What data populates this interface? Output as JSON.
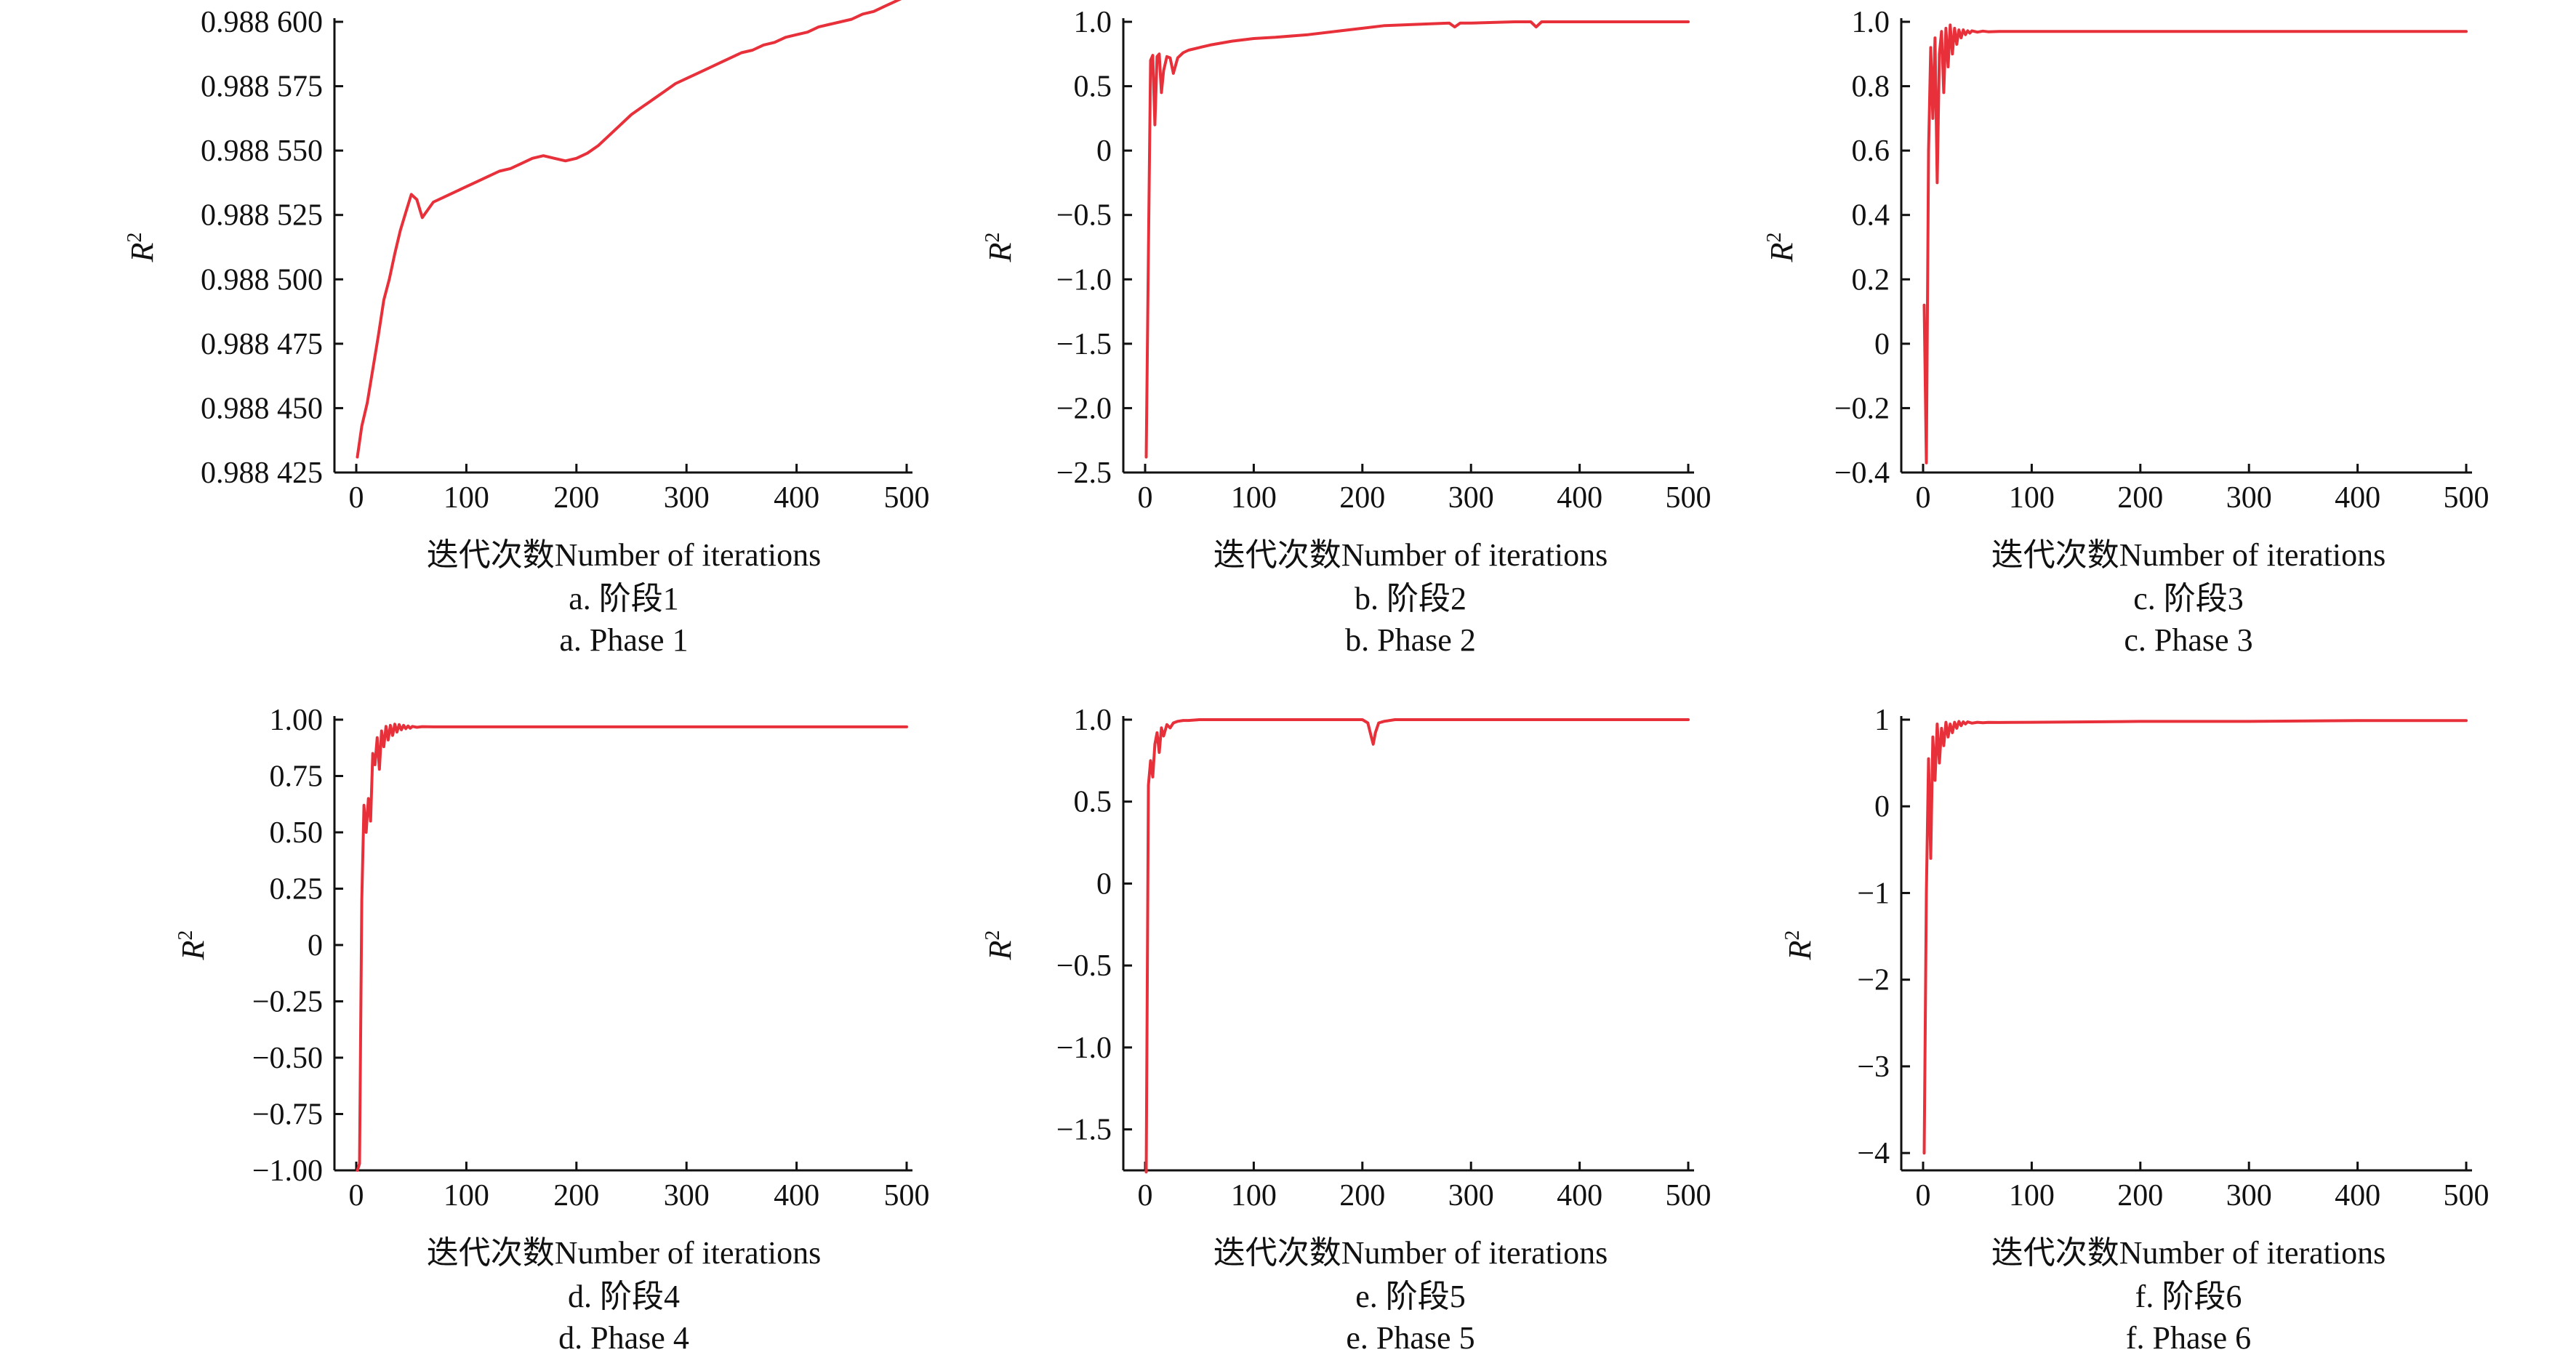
{
  "chart_data": [
    {
      "type": "line",
      "ylabel": "R",
      "ylabel_sup": "2",
      "xlabel": "迭代次数Number of iterations",
      "caption_cn": "a. 阶段1",
      "caption_en": "a. Phase 1",
      "xlim": [
        0,
        500
      ],
      "ylim": [
        0.988425,
        0.9886
      ],
      "xticks": [
        0,
        100,
        200,
        300,
        400,
        500
      ],
      "xtick_labels": [
        "0",
        "100",
        "200",
        "300",
        "400",
        "500"
      ],
      "yticks": [
        0.988425,
        0.98845,
        0.988475,
        0.9885,
        0.988525,
        0.98855,
        0.988575,
        0.9886
      ],
      "ytick_labels": [
        "0.988 425",
        "0.988 450",
        "0.988 475",
        "0.988 500",
        "0.988 525",
        "0.988 550",
        "0.988 575",
        "0.988 600"
      ],
      "grid": false,
      "color": "#e8303a",
      "series": [
        {
          "x": [
            1,
            5,
            10,
            15,
            20,
            25,
            30,
            35,
            40,
            45,
            50,
            55,
            60,
            65,
            70,
            80,
            90,
            100,
            110,
            120,
            130,
            140,
            150,
            160,
            170,
            180,
            190,
            200,
            210,
            220,
            230,
            240,
            250,
            260,
            270,
            280,
            290,
            300,
            310,
            320,
            330,
            340,
            350,
            360,
            370,
            380,
            390,
            400,
            410,
            420,
            430,
            440,
            450,
            460,
            470,
            480,
            490,
            500
          ],
          "y": [
            0.988431,
            0.988443,
            0.988452,
            0.988465,
            0.988478,
            0.988492,
            0.9885,
            0.98851,
            0.988519,
            0.988526,
            0.988533,
            0.988531,
            0.988524,
            0.988527,
            0.98853,
            0.988532,
            0.988534,
            0.988536,
            0.988538,
            0.98854,
            0.988542,
            0.988543,
            0.988545,
            0.988547,
            0.988548,
            0.988547,
            0.988546,
            0.988547,
            0.988549,
            0.988552,
            0.988556,
            0.98856,
            0.988564,
            0.988567,
            0.98857,
            0.988573,
            0.988576,
            0.988578,
            0.98858,
            0.988582,
            0.988584,
            0.988586,
            0.988588,
            0.988589,
            0.988591,
            0.988592,
            0.988594,
            0.988595,
            0.988596,
            0.988598,
            0.988599,
            0.9886,
            0.988601,
            0.988603,
            0.988604,
            0.988606,
            0.988608,
            0.98861
          ]
        }
      ]
    },
    {
      "type": "line",
      "ylabel": "R",
      "ylabel_sup": "2",
      "xlabel": "迭代次数Number of iterations",
      "caption_cn": "b. 阶段2",
      "caption_en": "b. Phase 2",
      "xlim": [
        0,
        500
      ],
      "ylim": [
        -2.5,
        1.0
      ],
      "xticks": [
        0,
        100,
        200,
        300,
        400,
        500
      ],
      "xtick_labels": [
        "0",
        "100",
        "200",
        "300",
        "400",
        "500"
      ],
      "yticks": [
        -2.5,
        -2.0,
        -1.5,
        -1.0,
        -0.5,
        0,
        0.5,
        1.0
      ],
      "ytick_labels": [
        "−2.5",
        "−2.0",
        "−1.5",
        "−1.0",
        "−0.5",
        "0",
        "0.5",
        "1.0"
      ],
      "grid": false,
      "color": "#e8303a",
      "series": [
        {
          "x": [
            1,
            3,
            5,
            7,
            9,
            11,
            13,
            15,
            17,
            20,
            23,
            26,
            30,
            35,
            40,
            50,
            60,
            80,
            100,
            120,
            150,
            180,
            200,
            220,
            250,
            280,
            285,
            290,
            300,
            340,
            355,
            360,
            365,
            380,
            420,
            460,
            500
          ],
          "y": [
            -2.38,
            -0.8,
            0.7,
            0.74,
            0.2,
            0.73,
            0.75,
            0.45,
            0.62,
            0.73,
            0.72,
            0.6,
            0.72,
            0.76,
            0.78,
            0.8,
            0.82,
            0.85,
            0.87,
            0.88,
            0.9,
            0.93,
            0.95,
            0.97,
            0.98,
            0.99,
            0.96,
            0.99,
            0.99,
            1.0,
            1.0,
            0.96,
            1.0,
            1.0,
            1.0,
            1.0,
            1.0
          ]
        }
      ]
    },
    {
      "type": "line",
      "ylabel": "R",
      "ylabel_sup": "2",
      "xlabel": "迭代次数Number of iterations",
      "caption_cn": "c. 阶段3",
      "caption_en": "c. Phase 3",
      "xlim": [
        0,
        500
      ],
      "ylim": [
        -0.4,
        1.0
      ],
      "xticks": [
        0,
        100,
        200,
        300,
        400,
        500
      ],
      "xtick_labels": [
        "0",
        "100",
        "200",
        "300",
        "400",
        "500"
      ],
      "yticks": [
        -0.4,
        -0.2,
        0,
        0.2,
        0.4,
        0.6,
        0.8,
        1.0
      ],
      "ytick_labels": [
        "−0.4",
        "−0.2",
        "0",
        "0.2",
        "0.4",
        "0.6",
        "0.8",
        "1.0"
      ],
      "grid": false,
      "color": "#e8303a",
      "series": [
        {
          "x": [
            1,
            3,
            5,
            7,
            9,
            11,
            13,
            15,
            17,
            19,
            21,
            23,
            25,
            27,
            29,
            31,
            33,
            35,
            37,
            39,
            41,
            43,
            45,
            50,
            55,
            60,
            70,
            80,
            100,
            200,
            300,
            400,
            500
          ],
          "y": [
            0.12,
            -0.37,
            0.6,
            0.92,
            0.7,
            0.95,
            0.5,
            0.9,
            0.97,
            0.78,
            0.98,
            0.86,
            0.99,
            0.9,
            0.98,
            0.93,
            0.975,
            0.95,
            0.975,
            0.96,
            0.972,
            0.965,
            0.972,
            0.968,
            0.971,
            0.969,
            0.97,
            0.97,
            0.97,
            0.97,
            0.97,
            0.97,
            0.97
          ]
        }
      ]
    },
    {
      "type": "line",
      "ylabel": "R",
      "ylabel_sup": "2",
      "xlabel": "迭代次数Number of iterations",
      "caption_cn": "d. 阶段4",
      "caption_en": "d. Phase 4",
      "xlim": [
        0,
        500
      ],
      "ylim": [
        -1.0,
        1.0
      ],
      "xticks": [
        0,
        100,
        200,
        300,
        400,
        500
      ],
      "xtick_labels": [
        "0",
        "100",
        "200",
        "300",
        "400",
        "500"
      ],
      "yticks": [
        -1.0,
        -0.75,
        -0.5,
        -0.25,
        0,
        0.25,
        0.5,
        0.75,
        1.0
      ],
      "ytick_labels": [
        "−1.00",
        "−0.75",
        "−0.50",
        "−0.25",
        "0",
        "0.25",
        "0.50",
        "0.75",
        "1.00"
      ],
      "grid": false,
      "color": "#e8303a",
      "series": [
        {
          "x": [
            1,
            3,
            5,
            7,
            9,
            11,
            13,
            15,
            17,
            19,
            21,
            23,
            25,
            27,
            29,
            31,
            33,
            35,
            37,
            39,
            41,
            43,
            45,
            47,
            49,
            51,
            55,
            60,
            70,
            80,
            100,
            200,
            300,
            400,
            500
          ],
          "y": [
            -1.0,
            -0.97,
            0.2,
            0.62,
            0.5,
            0.65,
            0.55,
            0.85,
            0.8,
            0.92,
            0.78,
            0.95,
            0.88,
            0.97,
            0.91,
            0.975,
            0.93,
            0.98,
            0.945,
            0.978,
            0.955,
            0.975,
            0.96,
            0.972,
            0.962,
            0.97,
            0.966,
            0.969,
            0.968,
            0.968,
            0.968,
            0.968,
            0.968,
            0.968,
            0.968
          ]
        }
      ]
    },
    {
      "type": "line",
      "ylabel": "R",
      "ylabel_sup": "2",
      "xlabel": "迭代次数Number of iterations",
      "caption_cn": "e. 阶段5",
      "caption_en": "e. Phase 5",
      "xlim": [
        0,
        500
      ],
      "ylim": [
        -1.75,
        1.0
      ],
      "xticks": [
        0,
        100,
        200,
        300,
        400,
        500
      ],
      "xtick_labels": [
        "0",
        "100",
        "200",
        "300",
        "400",
        "500"
      ],
      "yticks": [
        -1.5,
        -1.0,
        -0.5,
        0,
        0.5,
        1.0
      ],
      "ytick_labels": [
        "−1.5",
        "−1.0",
        "−0.5",
        "0",
        "0.5",
        "1.0"
      ],
      "grid": false,
      "color": "#e8303a",
      "series": [
        {
          "x": [
            1,
            3,
            5,
            7,
            9,
            11,
            13,
            15,
            17,
            20,
            23,
            26,
            30,
            35,
            40,
            50,
            60,
            80,
            100,
            150,
            200,
            205,
            208,
            210,
            212,
            215,
            220,
            230,
            260,
            300,
            400,
            500
          ],
          "y": [
            -1.76,
            0.6,
            0.75,
            0.65,
            0.85,
            0.92,
            0.8,
            0.95,
            0.9,
            0.97,
            0.95,
            0.98,
            0.99,
            0.995,
            0.995,
            1.0,
            1.0,
            1.0,
            1.0,
            1.0,
            1.0,
            0.98,
            0.9,
            0.85,
            0.92,
            0.98,
            0.99,
            1.0,
            1.0,
            1.0,
            1.0,
            1.0
          ]
        }
      ]
    },
    {
      "type": "line",
      "ylabel": "R",
      "ylabel_sup": "2",
      "xlabel": "迭代次数Number of iterations",
      "caption_cn": "f. 阶段6",
      "caption_en": "f. Phase 6",
      "xlim": [
        0,
        500
      ],
      "ylim": [
        -4.2,
        1.0
      ],
      "xticks": [
        0,
        100,
        200,
        300,
        400,
        500
      ],
      "xtick_labels": [
        "0",
        "100",
        "200",
        "300",
        "400",
        "500"
      ],
      "yticks": [
        -4,
        -3,
        -2,
        -1,
        0,
        1
      ],
      "ytick_labels": [
        "−4",
        "−3",
        "−2",
        "−1",
        "0",
        "1"
      ],
      "grid": false,
      "color": "#e8303a",
      "series": [
        {
          "x": [
            1,
            3,
            5,
            7,
            9,
            11,
            13,
            15,
            17,
            19,
            21,
            23,
            25,
            27,
            29,
            31,
            33,
            35,
            37,
            39,
            41,
            45,
            50,
            55,
            60,
            70,
            80,
            100,
            200,
            300,
            400,
            500
          ],
          "y": [
            -4.0,
            -1.0,
            0.55,
            -0.6,
            0.8,
            0.3,
            0.95,
            0.5,
            0.9,
            0.7,
            0.97,
            0.8,
            0.95,
            0.85,
            0.97,
            0.9,
            0.98,
            0.93,
            0.975,
            0.95,
            0.975,
            0.96,
            0.97,
            0.965,
            0.968,
            0.967,
            0.968,
            0.97,
            0.98,
            0.98,
            0.99,
            0.99
          ]
        }
      ]
    }
  ]
}
